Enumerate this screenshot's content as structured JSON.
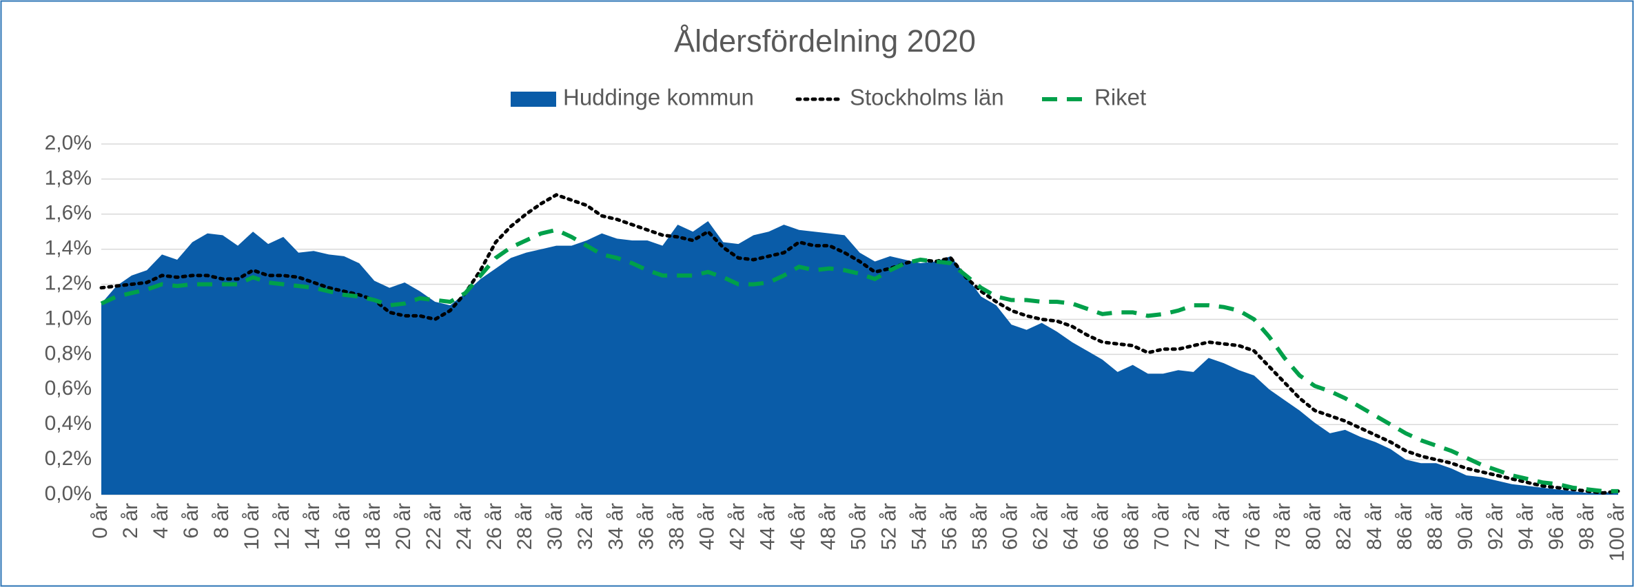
{
  "chart_data": {
    "type": "line",
    "title": "Åldersfördelning 2020",
    "categories": [
      "0 år",
      null,
      "2 år",
      null,
      "4 år",
      null,
      "6 år",
      null,
      "8 år",
      null,
      "10 år",
      null,
      "12 år",
      null,
      "14 år",
      null,
      "16 år",
      null,
      "18 år",
      null,
      "20 år",
      null,
      "22 år",
      null,
      "24 år",
      null,
      "26 år",
      null,
      "28 år",
      null,
      "30 år",
      null,
      "32 år",
      null,
      "34 år",
      null,
      "36 år",
      null,
      "38 år",
      null,
      "40 år",
      null,
      "42 år",
      null,
      "44 år",
      null,
      "46 år",
      null,
      "48 år",
      null,
      "50 år",
      null,
      "52 år",
      null,
      "54 år",
      null,
      "56 år",
      null,
      "58 år",
      null,
      "60 år",
      null,
      "62 år",
      null,
      "64 år",
      null,
      "66 år",
      null,
      "68 år",
      null,
      "70 år",
      null,
      "72 år",
      null,
      "74 år",
      null,
      "76 år",
      null,
      "78 år",
      null,
      "80 år",
      null,
      "82 år",
      null,
      "84 år",
      null,
      "86 år",
      null,
      "88 år",
      null,
      "90 år",
      null,
      "92 år",
      null,
      "94 år",
      null,
      "96 år",
      null,
      "98 år",
      null,
      "100 år"
    ],
    "series": [
      {
        "name": "Huddinge kommun",
        "kind": "area",
        "color": "#0a5ca8",
        "values": [
          1.09,
          1.19,
          1.25,
          1.28,
          1.37,
          1.34,
          1.44,
          1.49,
          1.48,
          1.42,
          1.5,
          1.43,
          1.47,
          1.38,
          1.39,
          1.37,
          1.36,
          1.32,
          1.22,
          1.18,
          1.21,
          1.16,
          1.1,
          1.08,
          1.15,
          1.23,
          1.29,
          1.35,
          1.38,
          1.4,
          1.42,
          1.42,
          1.45,
          1.49,
          1.46,
          1.45,
          1.45,
          1.42,
          1.54,
          1.5,
          1.56,
          1.44,
          1.43,
          1.48,
          1.5,
          1.54,
          1.51,
          1.5,
          1.49,
          1.48,
          1.38,
          1.33,
          1.36,
          1.34,
          1.32,
          1.33,
          1.36,
          1.25,
          1.13,
          1.08,
          0.97,
          0.94,
          0.98,
          0.93,
          0.87,
          0.82,
          0.77,
          0.7,
          0.74,
          0.69,
          0.69,
          0.71,
          0.7,
          0.78,
          0.75,
          0.71,
          0.68,
          0.6,
          0.54,
          0.48,
          0.41,
          0.35,
          0.37,
          0.33,
          0.3,
          0.26,
          0.2,
          0.18,
          0.18,
          0.15,
          0.11,
          0.1,
          0.08,
          0.06,
          0.05,
          0.04,
          0.03,
          0.02,
          0.01,
          0.01,
          0.02
        ]
      },
      {
        "name": "Stockholms län",
        "kind": "dotted",
        "color": "#000000",
        "values": [
          1.18,
          1.19,
          1.2,
          1.21,
          1.25,
          1.24,
          1.25,
          1.25,
          1.23,
          1.23,
          1.28,
          1.25,
          1.25,
          1.24,
          1.21,
          1.18,
          1.16,
          1.14,
          1.11,
          1.04,
          1.02,
          1.02,
          1.0,
          1.05,
          1.15,
          1.28,
          1.44,
          1.53,
          1.6,
          1.66,
          1.71,
          1.68,
          1.65,
          1.59,
          1.57,
          1.54,
          1.51,
          1.48,
          1.47,
          1.45,
          1.5,
          1.41,
          1.35,
          1.34,
          1.36,
          1.38,
          1.44,
          1.42,
          1.42,
          1.38,
          1.33,
          1.27,
          1.29,
          1.32,
          1.34,
          1.33,
          1.35,
          1.24,
          1.16,
          1.1,
          1.05,
          1.02,
          1.0,
          0.99,
          0.96,
          0.91,
          0.87,
          0.86,
          0.85,
          0.81,
          0.83,
          0.83,
          0.85,
          0.87,
          0.86,
          0.85,
          0.82,
          0.73,
          0.64,
          0.55,
          0.48,
          0.45,
          0.42,
          0.38,
          0.34,
          0.3,
          0.25,
          0.22,
          0.2,
          0.18,
          0.15,
          0.13,
          0.11,
          0.09,
          0.07,
          0.05,
          0.04,
          0.03,
          0.02,
          0.01,
          0.02
        ]
      },
      {
        "name": "Riket",
        "kind": "dashed",
        "color": "#00a04a",
        "values": [
          1.09,
          1.13,
          1.15,
          1.17,
          1.2,
          1.19,
          1.2,
          1.2,
          1.2,
          1.2,
          1.24,
          1.21,
          1.2,
          1.19,
          1.18,
          1.16,
          1.14,
          1.13,
          1.11,
          1.08,
          1.09,
          1.12,
          1.11,
          1.1,
          1.15,
          1.25,
          1.35,
          1.41,
          1.45,
          1.49,
          1.51,
          1.47,
          1.42,
          1.37,
          1.35,
          1.32,
          1.28,
          1.25,
          1.25,
          1.25,
          1.27,
          1.24,
          1.2,
          1.2,
          1.21,
          1.25,
          1.3,
          1.28,
          1.29,
          1.28,
          1.26,
          1.23,
          1.28,
          1.32,
          1.34,
          1.33,
          1.32,
          1.25,
          1.18,
          1.13,
          1.11,
          1.11,
          1.1,
          1.1,
          1.09,
          1.06,
          1.03,
          1.04,
          1.04,
          1.02,
          1.03,
          1.05,
          1.08,
          1.08,
          1.07,
          1.05,
          1.0,
          0.9,
          0.78,
          0.68,
          0.62,
          0.59,
          0.55,
          0.5,
          0.45,
          0.4,
          0.35,
          0.31,
          0.28,
          0.25,
          0.21,
          0.17,
          0.14,
          0.11,
          0.09,
          0.07,
          0.06,
          0.04,
          0.03,
          0.02,
          0.02
        ]
      }
    ],
    "ylim": [
      0,
      2.0
    ],
    "yticks": [
      {
        "value": 0,
        "label": "0,0%"
      },
      {
        "value": 0.2,
        "label": "0,2%"
      },
      {
        "value": 0.4,
        "label": "0,4%"
      },
      {
        "value": 0.6,
        "label": "0,6%"
      },
      {
        "value": 0.8,
        "label": "0,8%"
      },
      {
        "value": 1.0,
        "label": "1,0%"
      },
      {
        "value": 1.2,
        "label": "1,2%"
      },
      {
        "value": 1.4,
        "label": "1,4%"
      },
      {
        "value": 1.6,
        "label": "1,6%"
      },
      {
        "value": 1.8,
        "label": "1,8%"
      },
      {
        "value": 2.0,
        "label": "2,0%"
      }
    ],
    "grid": true,
    "legend": "top"
  }
}
